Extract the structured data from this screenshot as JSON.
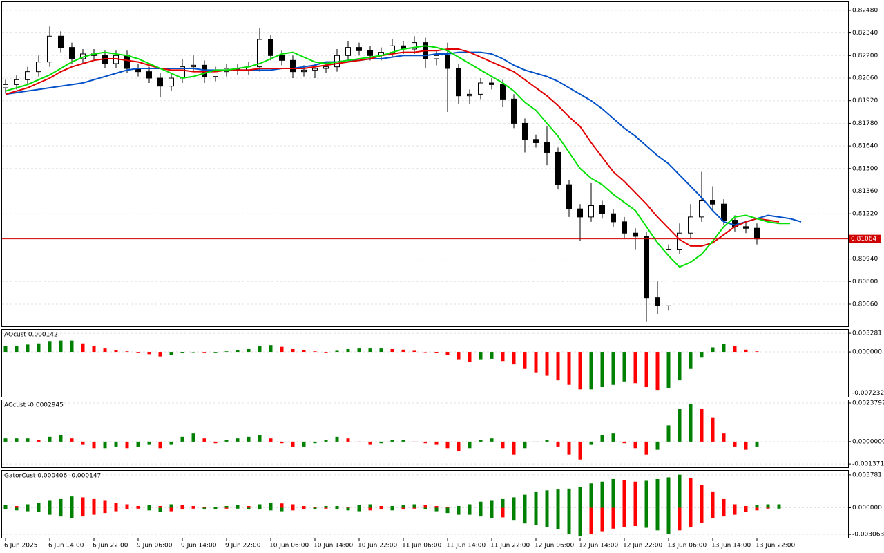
{
  "chart_data": [
    {
      "type": "candlestick",
      "categories": [
        "6 Jun 2025",
        null,
        null,
        null,
        "6 Jun 14:00",
        null,
        null,
        null,
        "6 Jun 22:00",
        null,
        null,
        null,
        "9 Jun 06:00",
        null,
        null,
        null,
        "9 Jun 14:00",
        null,
        null,
        null,
        "9 Jun 22:00",
        null,
        null,
        null,
        "10 Jun 06:00",
        null,
        null,
        null,
        "10 Jun 14:00",
        null,
        null,
        null,
        "10 Jun 22:00",
        null,
        null,
        null,
        "11 Jun 06:00",
        null,
        null,
        null,
        "11 Jun 14:00",
        null,
        null,
        null,
        "11 Jun 22:00",
        null,
        null,
        null,
        "12 Jun 06:00",
        null,
        null,
        null,
        "12 Jun 14:00",
        null,
        null,
        null,
        "12 Jun 22:00",
        null,
        null,
        null,
        "13 Jun 06:00",
        null,
        null,
        null,
        "13 Jun 14:00",
        null,
        null,
        null,
        "13 Jun 22:00",
        null,
        null,
        null,
        null
      ],
      "open": [
        0.82,
        0.8202,
        0.8205,
        0.821,
        0.8216,
        0.8232,
        0.8225,
        0.8218,
        0.8221,
        0.822,
        0.8215,
        0.822,
        0.8212,
        0.821,
        0.8206,
        0.8201,
        0.8206,
        0.8213,
        0.8214,
        0.8207,
        0.821,
        0.8212,
        0.8211,
        0.8213,
        0.823,
        0.822,
        0.8217,
        0.821,
        0.8211,
        0.8212,
        0.8213,
        0.822,
        0.8225,
        0.8223,
        0.822,
        0.8222,
        0.8226,
        0.8224,
        0.8228,
        0.8218,
        0.822,
        0.8212,
        0.8195,
        0.8196,
        0.8203,
        0.8202,
        0.8193,
        0.8178,
        0.8168,
        0.8166,
        0.816,
        0.814,
        0.8125,
        0.812,
        0.8127,
        0.8122,
        0.8117,
        0.811,
        0.8108,
        0.807,
        0.8065,
        0.81,
        0.811,
        0.812,
        0.813,
        0.8128,
        0.8118,
        0.8114,
        0.8113,
        null,
        null,
        null,
        null
      ],
      "high": [
        0.8205,
        0.8208,
        0.8213,
        0.822,
        0.8238,
        0.8235,
        0.8228,
        0.8224,
        0.8224,
        0.8223,
        0.8223,
        0.8223,
        0.8215,
        0.8213,
        0.8209,
        0.8209,
        0.8218,
        0.822,
        0.8217,
        0.8213,
        0.8215,
        0.8215,
        0.8216,
        0.8237,
        0.8233,
        0.8223,
        0.822,
        0.8214,
        0.8215,
        0.8216,
        0.8224,
        0.8229,
        0.8228,
        0.8226,
        0.8225,
        0.823,
        0.8229,
        0.8232,
        0.8231,
        0.8223,
        0.8228,
        0.8215,
        0.8199,
        0.8206,
        0.8206,
        0.8205,
        0.8196,
        0.8181,
        0.8171,
        0.8176,
        0.8163,
        0.8143,
        0.8128,
        0.8141,
        0.813,
        0.8125,
        0.812,
        0.8113,
        0.8111,
        0.808,
        0.8103,
        0.8116,
        0.8128,
        0.8148,
        0.8139,
        0.8131,
        0.8121,
        0.8117,
        0.8116,
        null,
        null,
        null,
        null
      ],
      "low": [
        0.8197,
        0.8199,
        0.8202,
        0.8207,
        0.8213,
        0.8222,
        0.8215,
        0.8215,
        0.8217,
        0.8212,
        0.8212,
        0.8209,
        0.8207,
        0.8203,
        0.8194,
        0.8198,
        0.8203,
        0.821,
        0.8203,
        0.8204,
        0.8207,
        0.8208,
        0.8208,
        0.821,
        0.8217,
        0.8214,
        0.8206,
        0.8207,
        0.8206,
        0.8209,
        0.821,
        0.8217,
        0.822,
        0.8217,
        0.8217,
        0.8219,
        0.8221,
        0.8221,
        0.8212,
        0.8214,
        0.8185,
        0.819,
        0.819,
        0.8193,
        0.8199,
        0.8188,
        0.8175,
        0.816,
        0.8163,
        0.8152,
        0.8137,
        0.812,
        0.8105,
        0.8117,
        0.8119,
        0.8114,
        0.8107,
        0.81,
        0.8055,
        0.806,
        0.8062,
        0.8097,
        0.8107,
        0.8117,
        0.8125,
        0.8115,
        0.8111,
        0.811,
        0.8103,
        null,
        null,
        null,
        null
      ],
      "close": [
        0.8202,
        0.8205,
        0.821,
        0.8216,
        0.8232,
        0.8225,
        0.8218,
        0.8221,
        0.822,
        0.8215,
        0.822,
        0.8212,
        0.821,
        0.8206,
        0.8201,
        0.8206,
        0.8213,
        0.8214,
        0.8207,
        0.821,
        0.8212,
        0.8211,
        0.8213,
        0.823,
        0.822,
        0.8217,
        0.821,
        0.8211,
        0.8212,
        0.8213,
        0.822,
        0.8225,
        0.8223,
        0.822,
        0.8222,
        0.8226,
        0.8224,
        0.8228,
        0.8218,
        0.822,
        0.8212,
        0.8195,
        0.8196,
        0.8203,
        0.8202,
        0.8193,
        0.8178,
        0.8168,
        0.8166,
        0.816,
        0.814,
        0.8125,
        0.812,
        0.8127,
        0.8122,
        0.8117,
        0.811,
        0.8108,
        0.807,
        0.8065,
        0.81,
        0.811,
        0.812,
        0.813,
        0.8128,
        0.8118,
        0.8114,
        0.8113,
        0.81064,
        null,
        null,
        null,
        null
      ],
      "up_fill": "#ffffff",
      "down_fill": "#000000",
      "series": [
        {
          "color": "#0050c8",
          "values": [
            0.8196,
            0.8197,
            0.8198,
            0.8199,
            0.82,
            0.8201,
            0.8202,
            0.8203,
            0.8205,
            0.8207,
            0.8209,
            0.8211,
            0.8212,
            0.8212,
            0.8212,
            0.8212,
            0.8212,
            0.8212,
            0.8211,
            0.8211,
            0.8211,
            0.8211,
            0.8211,
            0.8211,
            0.8211,
            0.8212,
            0.8212,
            0.8213,
            0.8214,
            0.8216,
            0.8216,
            0.8217,
            0.8217,
            0.8218,
            0.8218,
            0.8219,
            0.822,
            0.822,
            0.822,
            0.8221,
            0.8221,
            0.8222,
            0.8222,
            0.8222,
            0.8221,
            0.8218,
            0.8214,
            0.8211,
            0.8209,
            0.8207,
            0.8204,
            0.82,
            0.8196,
            0.8192,
            0.8187,
            0.8181,
            0.8175,
            0.817,
            0.8164,
            0.8158,
            0.8153,
            0.8146,
            0.8139,
            0.8132,
            0.8124,
            0.8117,
            0.8115,
            0.8117,
            0.8119,
            0.8121,
            0.812,
            0.8119,
            0.8117
          ]
        },
        {
          "color": "#e00000",
          "values": [
            0.8196,
            0.8198,
            0.82,
            0.8203,
            0.8206,
            0.821,
            0.8213,
            0.8215,
            0.8217,
            0.8218,
            0.8218,
            0.8217,
            0.8216,
            0.8214,
            0.8212,
            0.8211,
            0.8211,
            0.821,
            0.821,
            0.821,
            0.8211,
            0.8211,
            0.8211,
            0.8212,
            0.8212,
            0.8212,
            0.8212,
            0.8212,
            0.8213,
            0.8214,
            0.8215,
            0.8216,
            0.8217,
            0.8218,
            0.822,
            0.8221,
            0.8222,
            0.8222,
            0.8223,
            0.8223,
            0.8224,
            0.8224,
            0.8222,
            0.8219,
            0.8216,
            0.8213,
            0.821,
            0.8205,
            0.82,
            0.8195,
            0.8189,
            0.8182,
            0.8176,
            0.8166,
            0.8157,
            0.8148,
            0.8142,
            0.8135,
            0.8128,
            0.812,
            0.8113,
            0.8106,
            0.8102,
            0.8102,
            0.8104,
            0.8109,
            0.8114,
            0.8117,
            0.8119,
            0.8118,
            0.8117,
            null,
            null
          ]
        },
        {
          "color": "#00e000",
          "values": [
            0.8198,
            0.82,
            0.8202,
            0.8205,
            0.8208,
            0.8212,
            0.8216,
            0.8219,
            0.8221,
            0.8222,
            0.8221,
            0.822,
            0.8218,
            0.8215,
            0.8212,
            0.8209,
            0.8206,
            0.8207,
            0.8209,
            0.8211,
            0.8211,
            0.8212,
            0.8213,
            0.8215,
            0.8218,
            0.8221,
            0.8222,
            0.8219,
            0.8216,
            0.8215,
            0.8216,
            0.8217,
            0.8218,
            0.8219,
            0.822,
            0.8222,
            0.8224,
            0.8225,
            0.8226,
            0.8225,
            0.8223,
            0.8219,
            0.8215,
            0.8211,
            0.8207,
            0.8203,
            0.8198,
            0.8191,
            0.8186,
            0.8178,
            0.817,
            0.816,
            0.815,
            0.8144,
            0.814,
            0.8134,
            0.8129,
            0.8124,
            0.8114,
            0.8104,
            0.8096,
            0.8089,
            0.8092,
            0.8097,
            0.8105,
            0.8114,
            0.812,
            0.8121,
            0.8119,
            0.8117,
            0.8116,
            0.8116,
            null
          ]
        }
      ],
      "price_line": {
        "value": 0.81064,
        "label": "0.81064"
      },
      "price_color": "#d00000",
      "ylim": [
        0.80523,
        0.82531
      ],
      "yticks": [
        {
          "value": 0.8248,
          "label": "0.82480"
        },
        {
          "value": 0.8234,
          "label": "0.82340"
        },
        {
          "value": 0.822,
          "label": "0.82200"
        },
        {
          "value": 0.8206,
          "label": "0.82060"
        },
        {
          "value": 0.8192,
          "label": "0.81920"
        },
        {
          "value": 0.8178,
          "label": "0.81780"
        },
        {
          "value": 0.8164,
          "label": "0.81640"
        },
        {
          "value": 0.815,
          "label": "0.81500"
        },
        {
          "value": 0.8136,
          "label": "0.81360"
        },
        {
          "value": 0.8122,
          "label": "0.81220"
        },
        {
          "value": 0.8094,
          "label": "0.80940"
        },
        {
          "value": 0.808,
          "label": "0.80800"
        },
        {
          "value": 0.8066,
          "label": "0.80660"
        }
      ],
      "grid": true
    },
    {
      "type": "bar",
      "title": "AOcust 0.000142",
      "up_color": "#008000",
      "down_color": "#ff0000",
      "series": [
        {
          "values": [
            0.001,
            0.0011,
            0.0013,
            0.0015,
            0.0018,
            0.002,
            0.002,
            0.0015,
            0.001,
            0.0006,
            0.0003,
            0.0001,
            -0.0001,
            -0.0004,
            -0.0008,
            -0.0006,
            -0.0002,
            0,
            -0.0001,
            -0.0001,
            0.0001,
            0.0003,
            0.0005,
            0.001,
            0.0012,
            0.0009,
            0.0005,
            0.0003,
            0.0001,
            -0.0001,
            0.0002,
            0.0005,
            0.0006,
            0.0006,
            0.0006,
            0.0005,
            0.0004,
            0.0002,
            0,
            -0.0002,
            -0.0006,
            -0.0014,
            -0.0017,
            -0.0014,
            -0.0012,
            -0.0016,
            -0.0022,
            -0.003,
            -0.0036,
            -0.0042,
            -0.005,
            -0.0058,
            -0.0066,
            -0.0066,
            -0.0062,
            -0.0058,
            -0.0052,
            -0.0055,
            -0.0062,
            -0.0067,
            -0.0064,
            -0.005,
            -0.003,
            -0.001,
            0.0008,
            0.0014,
            0.001,
            0.0004,
            0.0001,
            null,
            null,
            null,
            null
          ]
        }
      ],
      "ylim": [
        -0.0079,
        0.0039
      ],
      "yticks": [
        0.003281,
        {
          "value": 0,
          "label": "0.000000"
        },
        -0.007232
      ],
      "grid": true
    },
    {
      "type": "bar",
      "title": "ACcust -0.0002945",
      "up_color": "#008000",
      "down_color": "#ff0000",
      "series": [
        {
          "values": [
            0.0002,
            0.0002,
            0.0002,
            0.0001,
            0.0003,
            0.0004,
            0.0002,
            -0.0002,
            -0.0004,
            -0.0004,
            -0.0003,
            -0.0004,
            -0.0003,
            -0.0002,
            -0.0004,
            -0.0002,
            0.0003,
            0.0005,
            0.0002,
            -0.0001,
            0.0001,
            0.0002,
            0.0003,
            0.0004,
            0.0002,
            -0.0001,
            -0.0003,
            -0.0003,
            -0.0001,
            0.0001,
            0.0003,
            0.0002,
            0,
            -0.0002,
            -0.0001,
            0.0001,
            0.0001,
            0,
            -0.0001,
            -0.0002,
            -0.0004,
            -0.0006,
            -0.0004,
            0.0001,
            0.0002,
            -0.0004,
            -0.0008,
            -0.0004,
            0,
            0.0001,
            -0.0003,
            -0.0008,
            -0.0011,
            -0.0002,
            0.0004,
            0.0005,
            -0.0001,
            -0.0004,
            -0.0008,
            -0.0005,
            0.001,
            0.002,
            0.0023,
            0.002,
            0.0015,
            0.0005,
            -0.0003,
            -0.0005,
            -0.0003,
            null,
            null,
            null,
            null
          ]
        }
      ],
      "ylim": [
        -0.00158,
        0.00255
      ],
      "yticks": [
        0.0023797,
        {
          "value": 0,
          "label": "0.0000000"
        },
        -0.0013714
      ],
      "grid": true
    },
    {
      "type": "bar",
      "title": "GatorCust 0.000406 -0.000147",
      "up_color": "#008000",
      "down_color": "#ff0000",
      "series": [
        {
          "values": [
            0.0003,
            0.0002,
            0.0004,
            0.0006,
            0.0008,
            0.001,
            0.0013,
            0.0012,
            0.001,
            0.0008,
            0.0006,
            0.0004,
            0.0002,
            0.0003,
            0.0002,
            0.0004,
            0.0003,
            0.0002,
            0.0001,
            0.0001,
            0.0002,
            0.0003,
            0.0002,
            0.0004,
            0.0006,
            0.0005,
            0.0004,
            0.0002,
            0.0001,
            0.0002,
            0.0002,
            0.0001,
            0.0003,
            0.0004,
            0.0002,
            0.0002,
            0.0003,
            0.0004,
            0.0003,
            0.0002,
            0.0001,
            0.0002,
            0.0004,
            0.0007,
            0.0008,
            0.001,
            0.0012,
            0.0015,
            0.0018,
            0.002,
            0.0021,
            0.0022,
            0.0024,
            0.0028,
            0.003,
            0.0033,
            0.0032,
            0.003,
            0.0031,
            0.0033,
            0.0035,
            0.0038,
            0.0034,
            0.0026,
            0.0018,
            0.001,
            0.0004,
            0.0002,
            0.0003,
            0.0004,
            0.0004,
            null,
            null
          ]
        },
        {
          "values": [
            -0.0002,
            -0.0003,
            -0.0004,
            -0.0005,
            -0.0008,
            -0.001,
            -0.0012,
            -0.001,
            -0.0008,
            -0.0006,
            -0.0004,
            -0.0002,
            -0.0001,
            -0.0003,
            -0.0005,
            -0.0004,
            -0.0002,
            -0.0001,
            -0.0002,
            -0.0002,
            -0.0001,
            -0.0001,
            -0.0002,
            -0.0002,
            -0.0003,
            -0.0004,
            -0.0003,
            -0.0002,
            -0.0002,
            -0.0001,
            -0.0002,
            -0.0003,
            -0.0004,
            -0.0003,
            -0.0002,
            -0.0003,
            -0.0002,
            -0.0001,
            -0.0002,
            -0.0004,
            -0.0006,
            -0.0008,
            -0.0008,
            -0.001,
            -0.0012,
            -0.0011,
            -0.0014,
            -0.0018,
            -0.002,
            -0.0022,
            -0.0025,
            -0.003,
            -0.0033,
            -0.003,
            -0.0027,
            -0.0024,
            -0.0022,
            -0.0021,
            -0.0023,
            -0.0026,
            -0.003,
            -0.0026,
            -0.0022,
            -0.0017,
            -0.0012,
            -0.001,
            -0.0008,
            -0.0005,
            -0.0003,
            -0.0001,
            -0.0001,
            null,
            null
          ]
        }
      ],
      "ylim": [
        -0.00345,
        0.00425
      ],
      "yticks": [
        0.003781,
        {
          "value": 0,
          "label": "0.000000"
        },
        -0.003063
      ],
      "grid": true
    }
  ]
}
